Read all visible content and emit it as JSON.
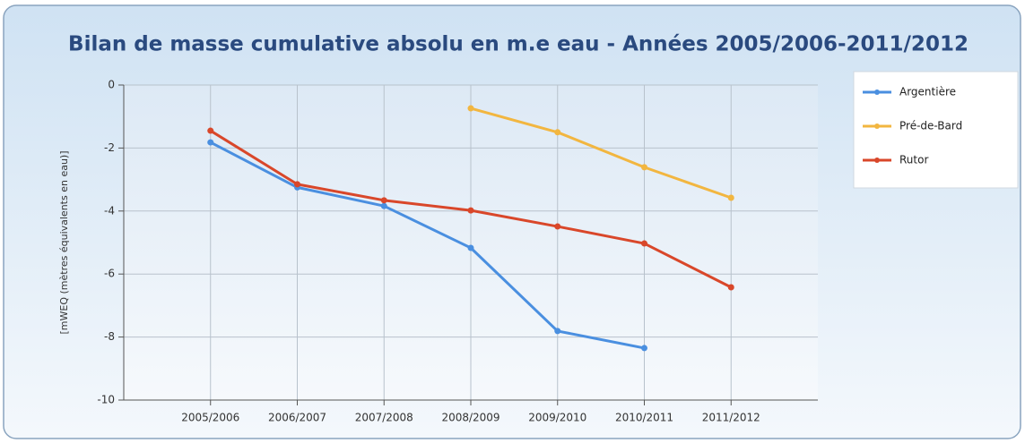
{
  "chart_data": {
    "type": "line",
    "title": "Bilan de masse cumulative absolu en m.e eau - Années 2005/2006-2011/2012",
    "y_label": "[mWEQ (mètres équivalents en eau)]",
    "categories": [
      "2005/2006",
      "2006/2007",
      "2007/2008",
      "2008/2009",
      "2009/2010",
      "2010/2011",
      "2011/2012"
    ],
    "series": [
      {
        "name": "Argentière",
        "color": "#4a8fe0",
        "values": [
          -1.82,
          -3.25,
          -3.84,
          -5.17,
          -7.81,
          -8.35,
          null
        ]
      },
      {
        "name": "Pré-de-Bard",
        "color": "#f2b640",
        "values": [
          null,
          null,
          null,
          -0.74,
          -1.5,
          -2.61,
          -3.58
        ]
      },
      {
        "name": "Rutor",
        "color": "#d9472a",
        "values": [
          -1.45,
          -3.15,
          -3.66,
          -3.98,
          -4.49,
          -5.03,
          -6.42
        ]
      }
    ],
    "ylim": [
      -10,
      0
    ],
    "yticks": [
      0,
      -2,
      -4,
      -6,
      -8,
      -10
    ],
    "grid": true,
    "legend": "top-right"
  }
}
